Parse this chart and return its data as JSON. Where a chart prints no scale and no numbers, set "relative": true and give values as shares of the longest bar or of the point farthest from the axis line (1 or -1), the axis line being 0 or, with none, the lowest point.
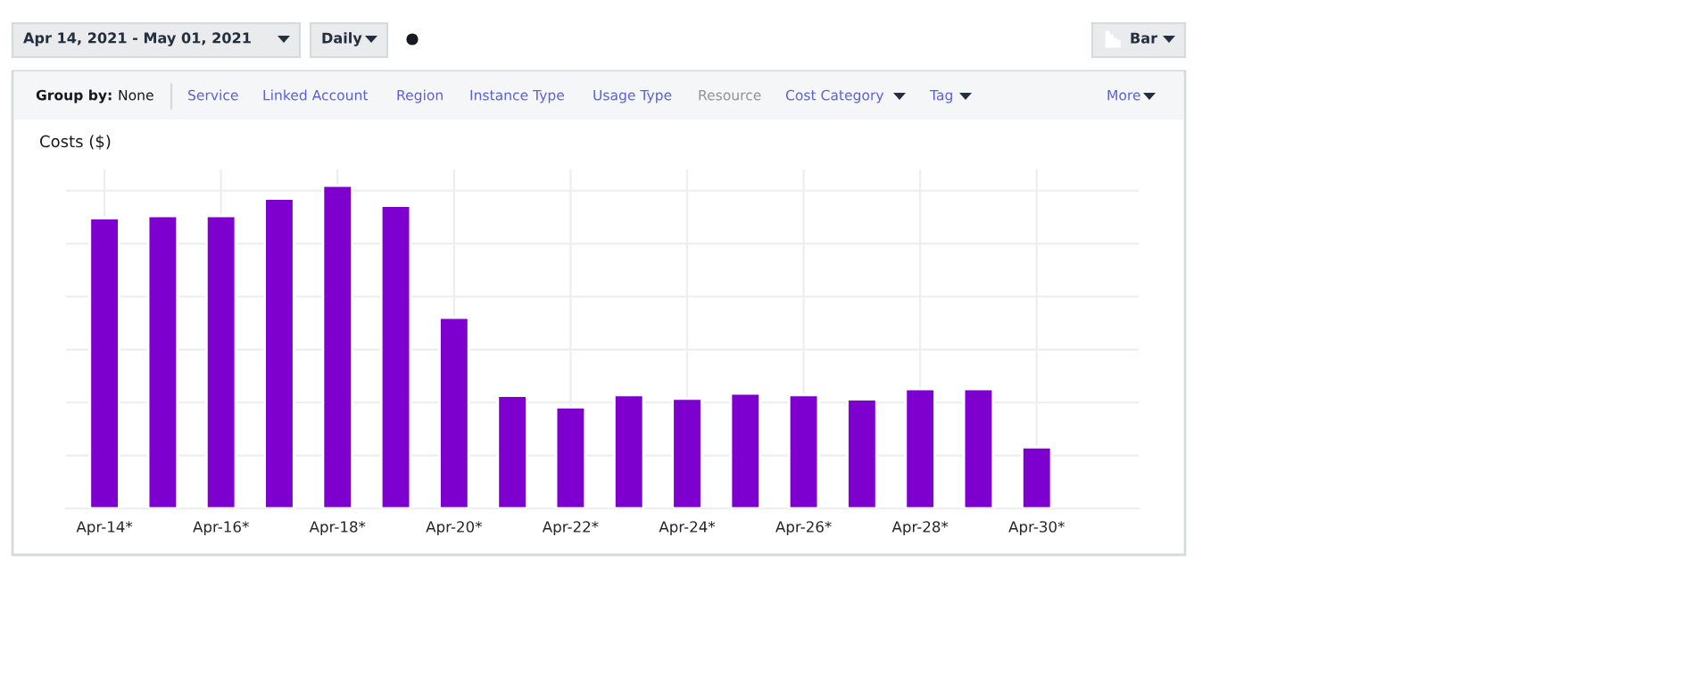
{
  "chart_data": {
    "type": "bar",
    "relative": true,
    "ylabel": "Costs ($)",
    "categories": [
      "Apr-14*",
      null,
      "Apr-16*",
      null,
      "Apr-18*",
      null,
      "Apr-20*",
      null,
      "Apr-22*",
      null,
      "Apr-24*",
      null,
      "Apr-26*",
      null,
      "Apr-28*",
      null,
      "Apr-30*"
    ],
    "values": [
      0.899,
      0.906,
      0.906,
      0.96,
      1,
      0.938,
      0.591,
      0.349,
      0.313,
      0.351,
      0.34,
      0.356,
      0.351,
      0.338,
      0.37,
      0.37,
      0.19
    ],
    "color": "#7d00cf",
    "grid": true,
    "annotations": [
      "Apr 14, 2021 - May 01, 2021",
      "Daily",
      "Bar",
      "Group by:",
      "None",
      "Service",
      "Linked Account",
      "Region",
      "Instance Type",
      "Usage Type",
      "Resource",
      "Cost Category",
      "Tag",
      "More"
    ]
  }
}
